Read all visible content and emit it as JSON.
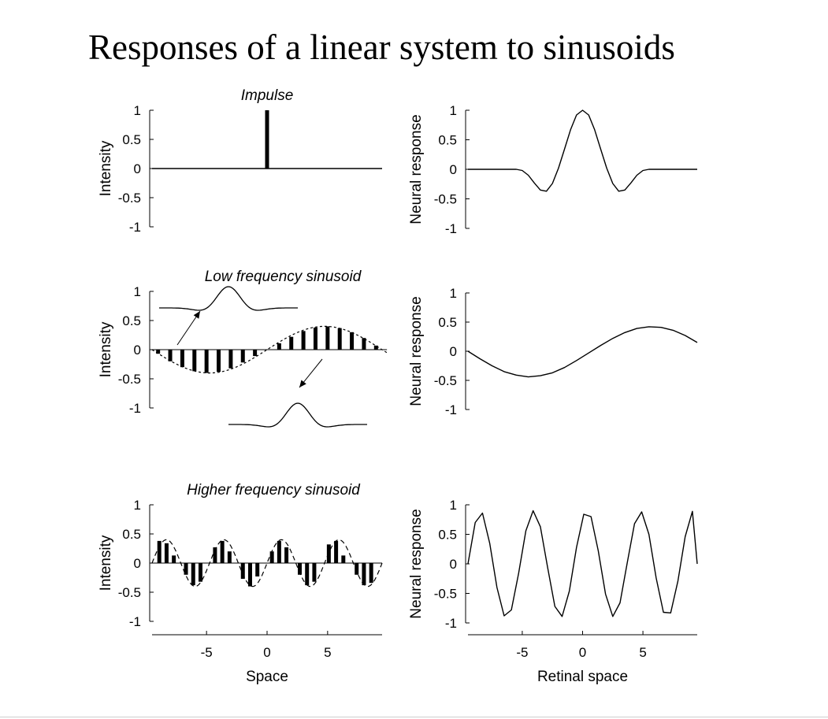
{
  "slide": {
    "title": "Responses of a linear system to sinusoids"
  },
  "chart_data": [
    {
      "type": "line",
      "panel": "impulse-input",
      "title": "Impulse",
      "xlabel": "",
      "ylabel": "Intensity",
      "xlim": [
        -9.5,
        9.5
      ],
      "ylim": [
        -1,
        1
      ],
      "yticks": [
        1,
        0.5,
        0,
        -0.5,
        -1
      ],
      "ytick_labels": [
        "1",
        "0.5",
        "0",
        "-0.5",
        "-1"
      ],
      "xticks": [],
      "series": [
        {
          "style": "baseline",
          "x": [
            -9.5,
            9.5
          ],
          "y": [
            0,
            0
          ]
        },
        {
          "style": "stem",
          "x": [
            0
          ],
          "y": [
            1
          ]
        }
      ]
    },
    {
      "type": "line",
      "panel": "impulse-response",
      "xlabel": "",
      "ylabel": "Neural response",
      "xlim": [
        -9.5,
        9.5
      ],
      "ylim": [
        -1,
        1
      ],
      "yticks": [
        1,
        0.5,
        0,
        -0.5,
        -1
      ],
      "ytick_labels": [
        "1",
        "0.5",
        "0",
        "-0.5",
        "-1"
      ],
      "xticks": [],
      "series": [
        {
          "x": [
            -9.5,
            -6,
            -5.5,
            -5,
            -4.5,
            -4,
            -3.5,
            -3,
            -2.5,
            -2,
            -1.5,
            -1,
            -0.5,
            0,
            0.5,
            1,
            1.5,
            2,
            2.5,
            3,
            3.5,
            4,
            4.5,
            5,
            5.5,
            6,
            9.5
          ],
          "y": [
            0,
            0,
            0,
            -0.02,
            -0.1,
            -0.23,
            -0.35,
            -0.37,
            -0.24,
            0.02,
            0.34,
            0.67,
            0.92,
            1,
            0.92,
            0.67,
            0.34,
            0.02,
            -0.24,
            -0.37,
            -0.35,
            -0.23,
            -0.1,
            -0.02,
            0,
            0,
            0
          ]
        }
      ]
    },
    {
      "type": "bar",
      "panel": "low-frequency-input",
      "title": "Low frequency sinusoid",
      "xlabel": "",
      "ylabel": "Intensity",
      "xlim": [
        -9.5,
        9.5
      ],
      "ylim": [
        -1,
        1
      ],
      "yticks": [
        1,
        0.5,
        0,
        -0.5,
        -1
      ],
      "ytick_labels": [
        "1",
        "0.5",
        "0",
        "-0.5",
        "-1"
      ],
      "xticks": [],
      "envelope": {
        "amplitude": 0.4,
        "period": 19,
        "phase_x": -9.5,
        "sign": -1,
        "x_end": 9.9
      },
      "x": [
        -9,
        -8,
        -7,
        -6,
        -5,
        -4,
        -3,
        -2,
        -1,
        1,
        2,
        3,
        4,
        5,
        6,
        7,
        8,
        9
      ],
      "values": [
        -0.07,
        -0.2,
        -0.3,
        -0.37,
        -0.4,
        -0.38,
        -0.32,
        -0.22,
        -0.11,
        0.11,
        0.22,
        0.32,
        0.38,
        0.4,
        0.37,
        0.3,
        0.2,
        0.07
      ],
      "annotations": [
        {
          "label": "kernel-shape",
          "at_x": -6,
          "at_y": 0.5,
          "curve_sign": -1
        },
        {
          "label": "kernel-shape",
          "at_x": 5,
          "at_y": -1.25,
          "curve_sign": 1
        }
      ]
    },
    {
      "type": "line",
      "panel": "low-frequency-response",
      "xlabel": "",
      "ylabel": "Neural response",
      "xlim": [
        -9.5,
        9.5
      ],
      "ylim": [
        -1,
        1
      ],
      "yticks": [
        1,
        0.5,
        0,
        -0.5,
        -1
      ],
      "ytick_labels": [
        "1",
        "0.5",
        "0",
        "-0.5",
        "-1"
      ],
      "xticks": [],
      "series": [
        {
          "x": [
            -9.5,
            -8.5,
            -7.5,
            -6.5,
            -5.5,
            -4.5,
            -3.5,
            -2.5,
            -1.5,
            -0.5,
            0.5,
            1.5,
            2.5,
            3.5,
            4.5,
            5.5,
            6.5,
            7.5,
            8.5,
            9.5
          ],
          "y": [
            0,
            -0.13,
            -0.25,
            -0.35,
            -0.41,
            -0.44,
            -0.42,
            -0.37,
            -0.28,
            -0.16,
            -0.03,
            0.1,
            0.22,
            0.32,
            0.39,
            0.42,
            0.41,
            0.36,
            0.27,
            0.15
          ]
        }
      ]
    },
    {
      "type": "bar",
      "panel": "high-frequency-input",
      "title": "Higher frequency sinusoid",
      "xlabel": "Space",
      "ylabel": "Intensity",
      "xlim": [
        -9.5,
        9.5
      ],
      "ylim": [
        -1,
        1
      ],
      "yticks": [
        1,
        0.5,
        0,
        -0.5,
        -1
      ],
      "ytick_labels": [
        "1",
        "0.5",
        "0",
        "-0.5",
        "-1"
      ],
      "xticks": [
        -5,
        0,
        5
      ],
      "xtick_labels": [
        "-5",
        "0",
        "5"
      ],
      "envelope": {
        "amplitude": 0.4,
        "period": 4.75,
        "phase_x": -9.5,
        "sign": 1,
        "x_end": 9.5
      },
      "x": [
        -8.9,
        -8.3,
        -7.7,
        -6.7,
        -6.1,
        -5.5,
        -4.3,
        -3.7,
        -3.1,
        -2,
        -1.4,
        -0.8,
        0.4,
        1,
        1.6,
        2.7,
        3.3,
        3.9,
        5.1,
        5.7,
        6.3,
        7.4,
        8,
        8.6
      ],
      "values": [
        0.38,
        0.34,
        0.13,
        -0.2,
        -0.38,
        -0.32,
        0.27,
        0.38,
        0.2,
        -0.27,
        -0.4,
        -0.23,
        0.2,
        0.38,
        0.27,
        -0.2,
        -0.38,
        -0.32,
        0.32,
        0.38,
        0.13,
        -0.2,
        -0.38,
        -0.34
      ]
    },
    {
      "type": "line",
      "panel": "high-frequency-response",
      "xlabel": "Retinal space",
      "ylabel": "Neural response",
      "xlim": [
        -9.5,
        9.5
      ],
      "ylim": [
        -1,
        1
      ],
      "yticks": [
        1,
        0.5,
        0,
        -0.5,
        -1
      ],
      "ytick_labels": [
        "1",
        "0.5",
        "0",
        "-0.5",
        "-1"
      ],
      "xticks": [
        -5,
        0,
        5
      ],
      "xtick_labels": [
        "-5",
        "0",
        "5"
      ],
      "series": [
        {
          "x": [
            -9.5,
            -8.9,
            -8.3,
            -7.7,
            -7.1,
            -6.5,
            -5.9,
            -5.3,
            -4.7,
            -4.1,
            -3.5,
            -2.9,
            -2.3,
            -1.7,
            -1.1,
            -0.5,
            0.1,
            0.7,
            1.3,
            1.9,
            2.5,
            3.1,
            3.7,
            4.3,
            4.9,
            5.5,
            6.1,
            6.7,
            7.3,
            7.9,
            8.5,
            9.1,
            9.5
          ],
          "y": [
            0,
            0.7,
            0.86,
            0.35,
            -0.4,
            -0.88,
            -0.78,
            -0.16,
            0.56,
            0.9,
            0.63,
            -0.06,
            -0.72,
            -0.89,
            -0.46,
            0.28,
            0.84,
            0.8,
            0.22,
            -0.51,
            -0.89,
            -0.66,
            0.02,
            0.68,
            0.88,
            0.5,
            -0.24,
            -0.82,
            -0.83,
            -0.29,
            0.46,
            0.89,
            0
          ]
        }
      ]
    }
  ]
}
